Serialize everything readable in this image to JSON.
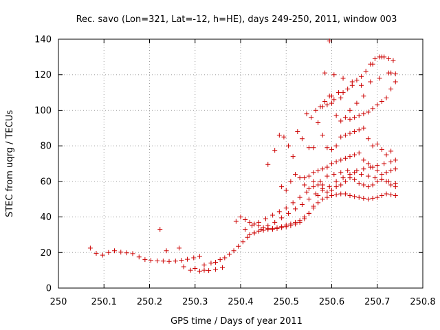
{
  "chart_data": {
    "type": "scatter",
    "title": "Rec. savo (Lon=321, Lat=-12, h=HE), days 249-250, 2011, window 003",
    "xlabel": "GPS time / Days of year 2011",
    "ylabel": "STEC from uqrg / TECUs",
    "xlim": [
      250,
      250.8
    ],
    "ylim": [
      0,
      140
    ],
    "xticks": [
      250,
      250.1,
      250.2,
      250.3,
      250.4,
      250.5,
      250.6,
      250.7,
      250.8
    ],
    "xtick_labels": [
      "250",
      "250.1",
      "250.2",
      "250.3",
      "250.4",
      "250.5",
      "250.6",
      "250.7",
      "250.8"
    ],
    "yticks": [
      0,
      20,
      40,
      60,
      80,
      100,
      120,
      140
    ],
    "ytick_labels": [
      "0",
      "20",
      "40",
      "60",
      "80",
      "100",
      "120",
      "140"
    ],
    "grid": true,
    "marker": "plus",
    "color": "#cc0000",
    "series": [
      {
        "x": [
          250.07,
          250.083,
          250.097,
          250.11,
          250.123,
          250.137,
          250.15,
          250.163,
          250.177,
          250.19,
          250.203,
          250.217,
          250.23,
          250.243,
          250.257,
          250.27,
          250.283,
          250.297,
          250.31,
          250.223,
          250.237,
          250.265,
          250.275,
          250.29,
          250.3,
          250.31,
          250.32,
          250.33,
          250.345,
          250.36,
          250.32,
          250.335,
          250.345,
          250.355,
          250.365,
          250.375,
          250.385,
          250.395,
          250.405,
          250.415,
          250.43,
          250.445,
          250.46,
          250.475,
          250.49,
          250.505,
          250.52,
          250.535,
          250.55,
          250.565,
          250.58,
          250.595,
          250.61,
          250.625,
          250.64,
          250.655,
          250.67,
          250.685,
          250.7,
          250.715,
          250.73,
          250.74,
          250.39,
          250.4,
          250.41,
          250.42,
          250.43,
          250.44,
          250.45,
          250.46,
          250.47,
          250.48,
          250.49,
          250.5,
          250.51,
          250.52,
          250.53,
          250.54,
          250.55,
          250.56,
          250.57,
          250.58,
          250.42,
          250.43,
          250.44,
          250.45,
          250.46,
          250.47,
          250.48,
          250.49,
          250.5,
          250.51,
          250.52,
          250.53,
          250.54,
          250.55,
          250.56,
          250.57,
          250.58,
          250.59,
          250.6,
          250.61,
          250.62,
          250.63,
          250.64,
          250.65,
          250.66,
          250.67,
          250.68,
          250.69,
          250.7,
          250.71,
          250.72,
          250.73,
          250.74,
          250.41,
          250.425,
          250.44,
          250.455,
          250.47,
          250.485,
          250.5,
          250.515,
          250.53,
          250.545,
          250.56,
          250.575,
          250.59,
          250.605,
          250.62,
          250.635,
          250.65,
          250.665,
          250.68,
          250.695,
          250.71,
          250.725,
          250.74,
          250.46,
          250.475,
          250.485,
          250.495,
          250.505,
          250.515,
          250.525,
          250.535,
          250.545,
          250.555,
          250.565,
          250.575,
          250.585,
          250.595,
          250.605,
          250.615,
          250.625,
          250.635,
          250.645,
          250.655,
          250.665,
          250.675,
          250.685,
          250.695,
          250.705,
          250.715,
          250.725,
          250.735,
          250.49,
          250.5,
          250.51,
          250.52,
          250.53,
          250.54,
          250.55,
          250.56,
          250.57,
          250.58,
          250.59,
          250.6,
          250.61,
          250.62,
          250.63,
          250.64,
          250.65,
          250.66,
          250.67,
          250.68,
          250.69,
          250.7,
          250.71,
          250.72,
          250.73,
          250.74,
          250.54,
          250.55,
          250.56,
          250.57,
          250.58,
          250.59,
          250.6,
          250.61,
          250.62,
          250.63,
          250.64,
          250.65,
          250.66,
          250.67,
          250.68,
          250.69,
          250.7,
          250.71,
          250.72,
          250.73,
          250.74,
          250.55,
          250.56,
          250.57,
          250.58,
          250.59,
          250.6,
          250.61,
          250.62,
          250.63,
          250.64,
          250.65,
          250.66,
          250.67,
          250.68,
          250.69,
          250.7,
          250.71,
          250.72,
          250.73,
          250.58,
          250.59,
          250.6,
          250.61,
          250.62,
          250.63,
          250.64,
          250.65,
          250.66,
          250.67,
          250.68,
          250.69,
          250.7,
          250.71,
          250.72,
          250.73,
          250.74,
          250.585,
          250.595,
          250.605,
          250.625,
          250.645,
          250.665,
          250.685,
          250.705,
          250.725,
          250.6,
          250.62,
          250.64,
          250.655,
          250.67,
          250.69,
          250.71,
          250.73,
          250.74
        ],
        "y": [
          22.5,
          19.5,
          18.5,
          20.0,
          21.0,
          20.2,
          19.8,
          19.4,
          17.5,
          16.0,
          15.5,
          15.3,
          15.2,
          15.0,
          15.2,
          15.6,
          16.2,
          17.0,
          17.8,
          33.0,
          21.0,
          22.5,
          12.0,
          10.0,
          11.0,
          9.5,
          10.0,
          9.8,
          10.5,
          11.5,
          13.0,
          14.0,
          14.5,
          16.0,
          17.0,
          19.0,
          21.0,
          23.5,
          26.0,
          28.5,
          31.0,
          33.0,
          35.0,
          37.0,
          39.5,
          42.0,
          44.5,
          47.0,
          50.0,
          53.0,
          55.0,
          57.0,
          60.0,
          62.0,
          64.0,
          66.0,
          67.0,
          68.0,
          69.0,
          70.0,
          71.0,
          72.0,
          37.5,
          40.0,
          38.5,
          37.0,
          36.0,
          35.0,
          34.0,
          33.5,
          33.0,
          33.5,
          34.0,
          34.5,
          35.0,
          36.0,
          37.0,
          39.0,
          42.0,
          46.0,
          52.0,
          58.0,
          30.0,
          31.0,
          32.0,
          32.5,
          33.0,
          33.5,
          34.0,
          34.5,
          35.5,
          36.0,
          37.0,
          38.0,
          40.0,
          42.0,
          45.0,
          48.0,
          50.0,
          51.0,
          52.0,
          52.5,
          53.0,
          53.0,
          52.0,
          51.5,
          51.0,
          50.5,
          50.0,
          50.5,
          51.0,
          52.0,
          53.0,
          52.5,
          52.0,
          33.0,
          35.0,
          37.0,
          39.0,
          41.0,
          43.0,
          45.0,
          48.0,
          51.0,
          54.0,
          57.0,
          60.0,
          63.0,
          64.0,
          65.0,
          66.0,
          65.0,
          64.0,
          63.0,
          62.0,
          61.0,
          60.0,
          59.0,
          69.5,
          77.5,
          86.0,
          85.0,
          80.0,
          74.0,
          88.0,
          84.0,
          98.0,
          96.0,
          100.0,
          102.0,
          105.0,
          108.0,
          106.0,
          110.0,
          110.0,
          112.0,
          114.0,
          117.0,
          119.0,
          122.0,
          126.0,
          129.0,
          130.0,
          130.0,
          129.0,
          128.0,
          57.0,
          55.0,
          60.0,
          64.0,
          62.0,
          58.0,
          56.0,
          60.0,
          58.0,
          56.0,
          54.0,
          55.0,
          57.0,
          58.0,
          60.0,
          62.0,
          61.0,
          59.0,
          58.0,
          57.0,
          58.0,
          60.0,
          61.0,
          60.0,
          58.0,
          57.0,
          62.0,
          63.0,
          65.0,
          66.0,
          67.0,
          68.0,
          70.0,
          71.0,
          72.0,
          73.0,
          74.0,
          75.0,
          76.0,
          72.0,
          70.0,
          68.0,
          66.0,
          64.0,
          65.0,
          66.0,
          67.0,
          79.0,
          79.0,
          93.0,
          86.0,
          79.0,
          78.0,
          80.0,
          85.0,
          86.0,
          87.0,
          88.0,
          89.0,
          90.0,
          84.0,
          80.0,
          81.0,
          78.0,
          75.0,
          77.0,
          102.0,
          103.0,
          104.0,
          97.0,
          94.0,
          96.0,
          95.0,
          96.0,
          97.0,
          98.0,
          99.0,
          101.0,
          103.0,
          105.0,
          107.0,
          112.0,
          116.0,
          121.0,
          139.0,
          120.0,
          118.0,
          116.0,
          114.0,
          116.0,
          118.0,
          121.0,
          108.0,
          107.0,
          100.0,
          104.0,
          108.0,
          126.0,
          130.0,
          121.0,
          120.5
        ]
      }
    ]
  }
}
